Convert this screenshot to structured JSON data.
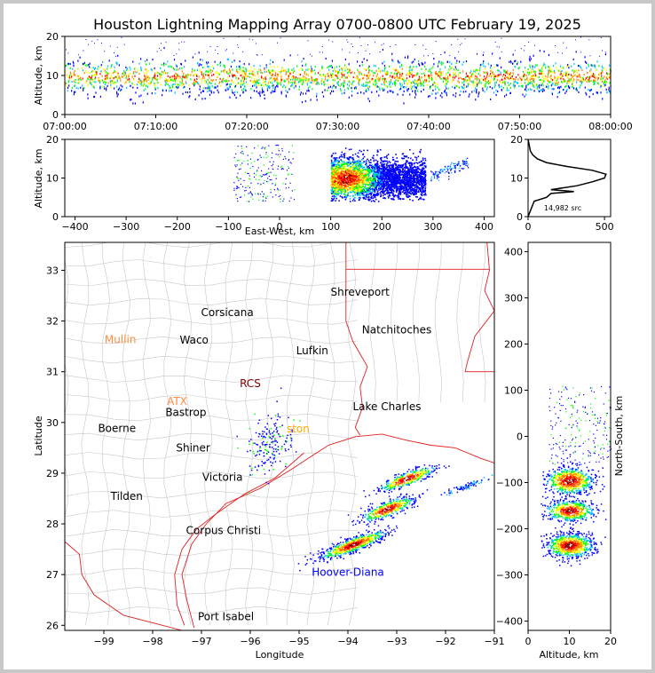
{
  "title": "Houston Lightning Mapping Array 0700-0800 UTC February 19, 2025",
  "colors": {
    "state_border": "#e02020",
    "county_border": "#c8c8c8",
    "station_label_default": "#000000",
    "station_orange": "#ff8c40",
    "station_darkred": "#800000",
    "station_gold": "#ffaa00",
    "hoover_diana": "#0000ff",
    "density_scale": [
      "#0000ff",
      "#00c0ff",
      "#00ff00",
      "#ffff00",
      "#ff8000",
      "#ff0000",
      "#800000",
      "#ffffff"
    ]
  },
  "panels": {
    "time_height": {
      "ylabel": "Altitude, km",
      "yticks": [
        "0",
        "10",
        "20"
      ],
      "xticks": [
        "07:00:00",
        "07:10:00",
        "07:20:00",
        "07:30:00",
        "07:40:00",
        "07:50:00",
        "08:00:00"
      ]
    },
    "ew_height": {
      "ylabel": "Altitude, km",
      "xlabel": "East-West, km",
      "yticks": [
        "0",
        "10",
        "20"
      ],
      "xticks": [
        "−400",
        "−300",
        "−200",
        "−100",
        "0",
        "100",
        "200",
        "300",
        "400"
      ]
    },
    "histogram": {
      "yticks": [
        "0",
        "10",
        "20"
      ],
      "xticks": [
        "0",
        "500"
      ],
      "annotation": "14,982 src"
    },
    "plan_view": {
      "ylabel": "Latitude",
      "xlabel": "Longitude",
      "yticks": [
        "26",
        "27",
        "28",
        "29",
        "30",
        "31",
        "32",
        "33"
      ],
      "xticks": [
        "−99",
        "−98",
        "−97",
        "−96",
        "−95",
        "−94",
        "−93",
        "−92",
        "−91"
      ]
    },
    "ns_height": {
      "ylabel": "North-South, km",
      "xlabel": "Altitude, km",
      "yticks": [
        "−400",
        "−300",
        "−200",
        "−100",
        "0",
        "100",
        "200",
        "300",
        "400"
      ],
      "xticks": [
        "0",
        "10",
        "20"
      ]
    }
  },
  "cities": [
    {
      "name": "Shreveport",
      "lon": -93.75,
      "lat": 32.5,
      "color": "#000000"
    },
    {
      "name": "Corsicana",
      "lon": -96.47,
      "lat": 32.1,
      "color": "#000000"
    },
    {
      "name": "Natchitoches",
      "lon": -93.0,
      "lat": 31.76,
      "color": "#000000"
    },
    {
      "name": "Mullin",
      "lon": -98.66,
      "lat": 31.56,
      "color": "#ff8c40"
    },
    {
      "name": "Waco",
      "lon": -97.15,
      "lat": 31.55,
      "color": "#000000"
    },
    {
      "name": "Lufkin",
      "lon": -94.73,
      "lat": 31.34,
      "color": "#000000"
    },
    {
      "name": "RCS",
      "lon": -96.0,
      "lat": 30.7,
      "color": "#800000"
    },
    {
      "name": "ATX",
      "lon": -97.5,
      "lat": 30.35,
      "color": "#ff8c40"
    },
    {
      "name": "Bastrop",
      "lon": -97.32,
      "lat": 30.13,
      "color": "#000000"
    },
    {
      "name": "Lake Charles",
      "lon": -93.2,
      "lat": 30.24,
      "color": "#000000"
    },
    {
      "name": "Boerne",
      "lon": -98.73,
      "lat": 29.81,
      "color": "#000000"
    },
    {
      "name": "ston",
      "lon": -95.02,
      "lat": 29.8,
      "color": "#ffaa00"
    },
    {
      "name": "Shiner",
      "lon": -97.17,
      "lat": 29.43,
      "color": "#000000"
    },
    {
      "name": "Victoria",
      "lon": -96.57,
      "lat": 28.85,
      "color": "#000000"
    },
    {
      "name": "Tilden",
      "lon": -98.53,
      "lat": 28.47,
      "color": "#000000"
    },
    {
      "name": "Corpus Christi",
      "lon": -96.55,
      "lat": 27.8,
      "color": "#000000"
    },
    {
      "name": "Hoover-Diana",
      "lon": -94.0,
      "lat": 26.98,
      "color": "#0000ff"
    },
    {
      "name": "Port Isabel",
      "lon": -96.5,
      "lat": 26.1,
      "color": "#000000"
    }
  ],
  "chart_data": {
    "type": "scatter",
    "title": "Houston Lightning Mapping Array 0700-0800 UTC February 19, 2025",
    "total_sources": 14982,
    "time_range_utc": [
      "07:00:00",
      "08:00:00"
    ],
    "altitude_range_km": [
      0,
      20
    ],
    "east_west_range_km": [
      -420,
      420
    ],
    "north_south_range_km": [
      -420,
      420
    ],
    "lon_range": [
      -99.8,
      -91
    ],
    "lat_range": [
      25.9,
      33.55
    ],
    "storm_clusters": [
      {
        "lon": -93.9,
        "lat": 27.6,
        "ew_km": 120,
        "ns_km": -240,
        "peak_alt_km": 10
      },
      {
        "lon": -93.2,
        "lat": 28.3,
        "ew_km": 190,
        "ns_km": -160,
        "peak_alt_km": 10
      },
      {
        "lon": -92.8,
        "lat": 28.9,
        "ew_km": 230,
        "ns_km": -95,
        "peak_alt_km": 10
      },
      {
        "lon": -91.6,
        "lat": 28.75,
        "ew_km": 350,
        "ns_km": -110,
        "peak_alt_km": 12
      },
      {
        "lon": -95.6,
        "lat": 29.6,
        "ew_km": 0,
        "ns_km": -20,
        "peak_alt_km": 10
      }
    ],
    "altitude_histogram": {
      "x": "source count",
      "y": "altitude km",
      "points": [
        [
          0,
          0
        ],
        [
          20,
          2
        ],
        [
          40,
          4
        ],
        [
          120,
          5
        ],
        [
          150,
          6
        ],
        [
          300,
          6.5
        ],
        [
          150,
          7
        ],
        [
          320,
          8
        ],
        [
          420,
          9
        ],
        [
          500,
          10
        ],
        [
          510,
          11
        ],
        [
          420,
          12
        ],
        [
          250,
          13
        ],
        [
          120,
          14
        ],
        [
          60,
          15
        ],
        [
          30,
          16
        ],
        [
          15,
          17
        ],
        [
          10,
          18
        ],
        [
          5,
          19
        ],
        [
          0,
          20
        ]
      ]
    }
  }
}
